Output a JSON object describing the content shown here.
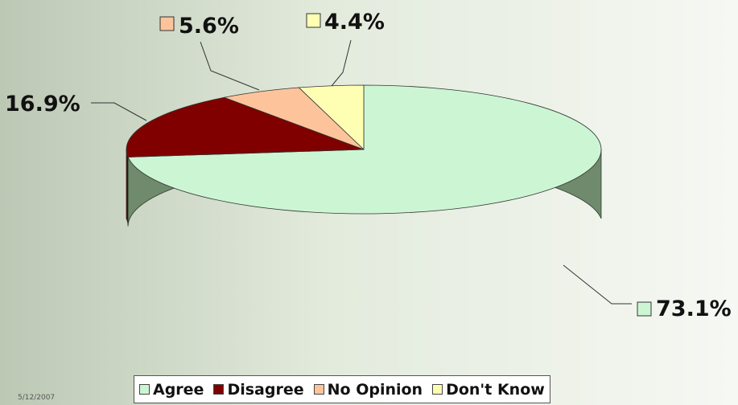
{
  "chart_data": {
    "type": "pie",
    "three_d": true,
    "categories": [
      "Agree",
      "Disagree",
      "No Opinion",
      "Don't Know"
    ],
    "values": [
      73.1,
      16.9,
      5.6,
      4.4
    ],
    "labels": [
      "73.1%",
      "16.9%",
      "5.6%",
      "4.4%"
    ],
    "colors": [
      "#ccf6d3",
      "#800000",
      "#fdc49c",
      "#ffffb3"
    ],
    "side_colors": [
      "#6f8a6c",
      "#4a0000",
      "#a57e62",
      "#a6a670"
    ],
    "legend_placement": "bottom",
    "title": ""
  },
  "legend": {
    "items": [
      {
        "label": "Agree",
        "color": "#ccf6d3"
      },
      {
        "label": "Disagree",
        "color": "#800000"
      },
      {
        "label": "No Opinion",
        "color": "#fdc49c"
      },
      {
        "label": "Don't Know",
        "color": "#ffffb3"
      }
    ]
  },
  "footer": {
    "date": "5/12/2007"
  }
}
